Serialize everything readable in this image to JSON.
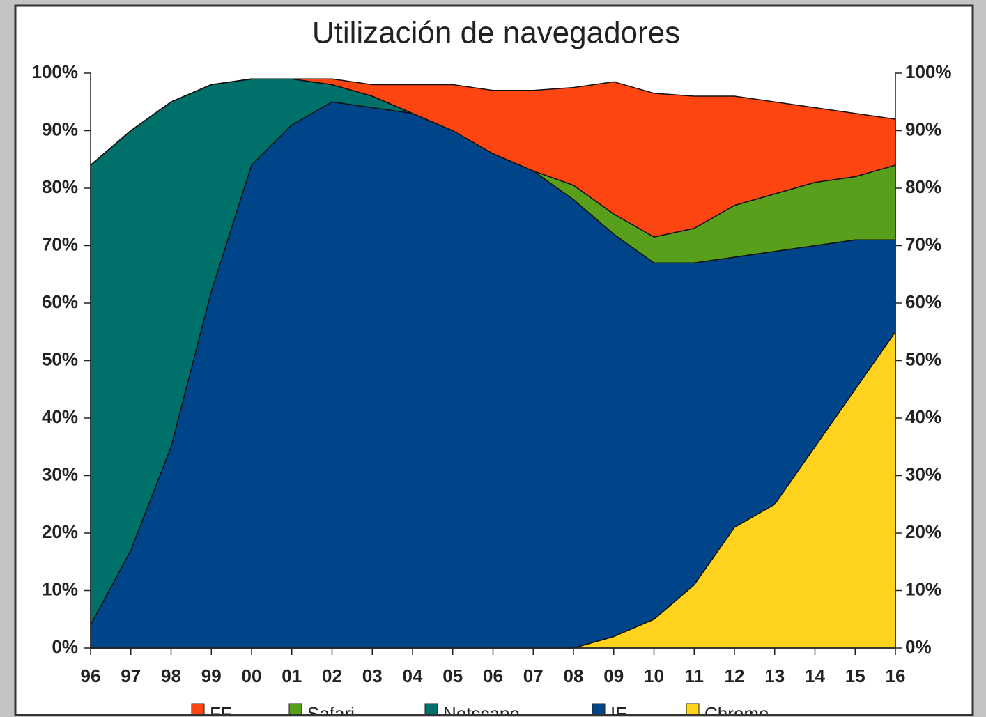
{
  "chart_data": {
    "type": "stacked_area",
    "title": "Utilización de navegadores",
    "categories": [
      "96",
      "97",
      "98",
      "99",
      "00",
      "01",
      "02",
      "03",
      "04",
      "05",
      "06",
      "07",
      "08",
      "09",
      "10",
      "11",
      "12",
      "13",
      "14",
      "15",
      "16"
    ],
    "series": [
      {
        "name": "Chrome",
        "color": "#ffd21e",
        "values": [
          0,
          0,
          0,
          0,
          0,
          0,
          0,
          0,
          0,
          0,
          0,
          0,
          0,
          2,
          5,
          11,
          21,
          25,
          35,
          45,
          55
        ]
      },
      {
        "name": "IE",
        "color": "#00458a",
        "values": [
          4,
          17,
          35,
          62,
          84,
          91,
          95,
          94,
          93,
          90,
          86,
          83,
          78,
          70,
          62,
          56,
          47,
          44,
          35,
          26,
          16
        ]
      },
      {
        "name": "Netscape",
        "color": "#00706a",
        "values": [
          80,
          73,
          60,
          36,
          15,
          8,
          3,
          2,
          0,
          0,
          0,
          0,
          0,
          0,
          0,
          0,
          0,
          0,
          0,
          0,
          0
        ]
      },
      {
        "name": "Safari",
        "color": "#58a01c",
        "values": [
          0,
          0,
          0,
          0,
          0,
          0,
          0,
          0,
          0,
          0,
          0,
          0,
          2.5,
          3.5,
          4.5,
          6,
          9,
          10,
          11,
          11,
          13
        ]
      },
      {
        "name": "FF",
        "color": "#fc4510",
        "values": [
          0,
          0,
          0,
          0,
          0,
          0,
          1,
          2,
          5,
          8,
          11,
          14,
          17,
          23,
          25,
          23,
          19,
          16,
          13,
          11,
          8
        ]
      }
    ],
    "legend_order": [
      "FF",
      "Safari",
      "Netscape",
      "IE",
      "Chrome"
    ],
    "ylim": [
      0,
      100
    ],
    "yticks": [
      {
        "value": 0,
        "label": "0%"
      },
      {
        "value": 10,
        "label": "10%"
      },
      {
        "value": 20,
        "label": "20%"
      },
      {
        "value": 30,
        "label": "30%"
      },
      {
        "value": 40,
        "label": "40%"
      },
      {
        "value": 50,
        "label": "50%"
      },
      {
        "value": 60,
        "label": "60%"
      },
      {
        "value": 70,
        "label": "70%"
      },
      {
        "value": 80,
        "label": "80%"
      },
      {
        "value": 90,
        "label": "90%"
      },
      {
        "value": 100,
        "label": "100%"
      }
    ]
  }
}
